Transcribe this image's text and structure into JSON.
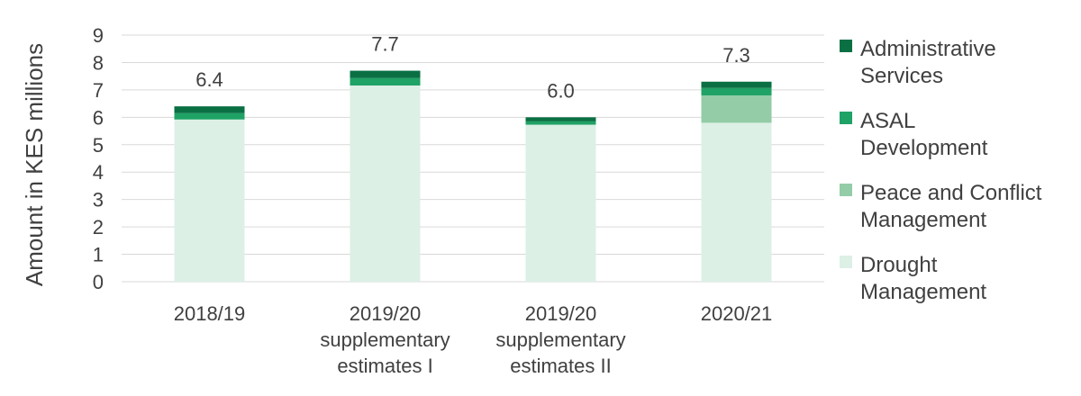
{
  "chart_data": {
    "type": "bar",
    "stacked": true,
    "title": "",
    "xlabel": "",
    "ylabel": "Amount in KES millions",
    "ylim": [
      0,
      9
    ],
    "yticks": [
      0,
      1,
      2,
      3,
      4,
      5,
      6,
      7,
      8,
      9
    ],
    "grid": true,
    "legend_position": "right",
    "categories": [
      [
        "2018/19"
      ],
      [
        "2019/20",
        "supplementary",
        "estimates I"
      ],
      [
        "2019/20",
        "supplementary",
        "estimates II"
      ],
      [
        "2020/21"
      ]
    ],
    "totals": [
      "6.4",
      "7.7",
      "6.0",
      "7.3"
    ],
    "series": [
      {
        "name": "Drought Management",
        "legend_lines": [
          "Drought",
          "Management"
        ],
        "color": "#dcf0e6",
        "values": [
          5.92,
          7.16,
          5.73,
          5.8
        ]
      },
      {
        "name": "Peace and Conflict Management",
        "legend_lines": [
          "Peace and Conflict",
          "Management"
        ],
        "color": "#93cca7",
        "values": [
          0.0,
          0.0,
          0.0,
          1.0
        ]
      },
      {
        "name": "ASAL Development",
        "legend_lines": [
          "ASAL",
          "Development"
        ],
        "color": "#1fa265",
        "values": [
          0.23,
          0.27,
          0.12,
          0.27
        ]
      },
      {
        "name": "Administrative Services",
        "legend_lines": [
          "Administrative",
          "Services"
        ],
        "color": "#0a7044",
        "values": [
          0.25,
          0.27,
          0.15,
          0.23
        ]
      }
    ]
  }
}
